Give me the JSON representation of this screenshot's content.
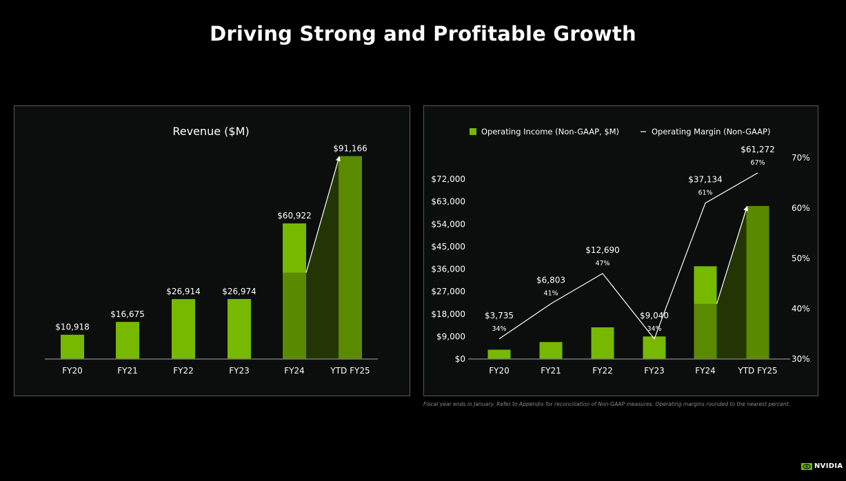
{
  "title": "Driving Strong and Profitable Growth",
  "footnote": "Fiscal year ends in January. Refer to Appendix for reconciliation of Non-GAAP measures. Operating margins rounded to the nearest percent.",
  "brand": "NVIDIA",
  "colors": {
    "bar": "#76b900",
    "bar_dark": "#5a8a00",
    "shade": "#233505",
    "line": "#ffffff",
    "panel": "#0c0d0d"
  },
  "chart_data": [
    {
      "type": "bar",
      "title": "Revenue ($M)",
      "categories": [
        "FY20",
        "FY21",
        "FY22",
        "FY23",
        "FY24",
        "YTD FY25"
      ],
      "values": [
        10918,
        16675,
        26914,
        26974,
        60922,
        91166
      ],
      "data_labels": [
        "$10,918",
        "$16,675",
        "$26,914",
        "$26,974",
        "$60,922",
        "$91,166"
      ],
      "fy24_ytd_portion": 38819,
      "xlabel": "",
      "ylabel": "",
      "grid": false
    },
    {
      "type": "bar+line",
      "categories": [
        "FY20",
        "FY21",
        "FY22",
        "FY23",
        "FY24",
        "YTD FY25"
      ],
      "legend": [
        "Operating Income (Non-GAAP, $M)",
        "Operating Margin (Non-GAAP)"
      ],
      "legend_position": "top",
      "series": [
        {
          "name": "Operating Income (Non-GAAP, $M)",
          "type": "bar",
          "values": [
            3735,
            6803,
            12690,
            9040,
            37134,
            61272
          ],
          "data_labels": [
            "$3,735",
            "$6,803",
            "$12,690",
            "$9,040",
            "$37,134",
            "$61,272"
          ]
        },
        {
          "name": "Operating Margin (Non-GAAP)",
          "type": "line",
          "axis": "right",
          "values": [
            34,
            41,
            47,
            34,
            61,
            67
          ],
          "data_labels": [
            "34%",
            "41%",
            "47%",
            "34%",
            "61%",
            "67%"
          ]
        }
      ],
      "fy24_ytd_portion": 22100,
      "y_left": {
        "range": [
          0,
          72000
        ],
        "ticks": [
          "$0",
          "$9,000",
          "$18,000",
          "$27,000",
          "$36,000",
          "$45,000",
          "$54,000",
          "$63,000",
          "$72,000"
        ],
        "tick_values": [
          0,
          9000,
          18000,
          27000,
          36000,
          45000,
          54000,
          63000,
          72000
        ]
      },
      "y_right": {
        "range": [
          30,
          70
        ],
        "ticks": [
          "30%",
          "40%",
          "50%",
          "60%",
          "70%"
        ],
        "tick_values": [
          30,
          40,
          50,
          60,
          70
        ]
      },
      "grid": false
    }
  ]
}
